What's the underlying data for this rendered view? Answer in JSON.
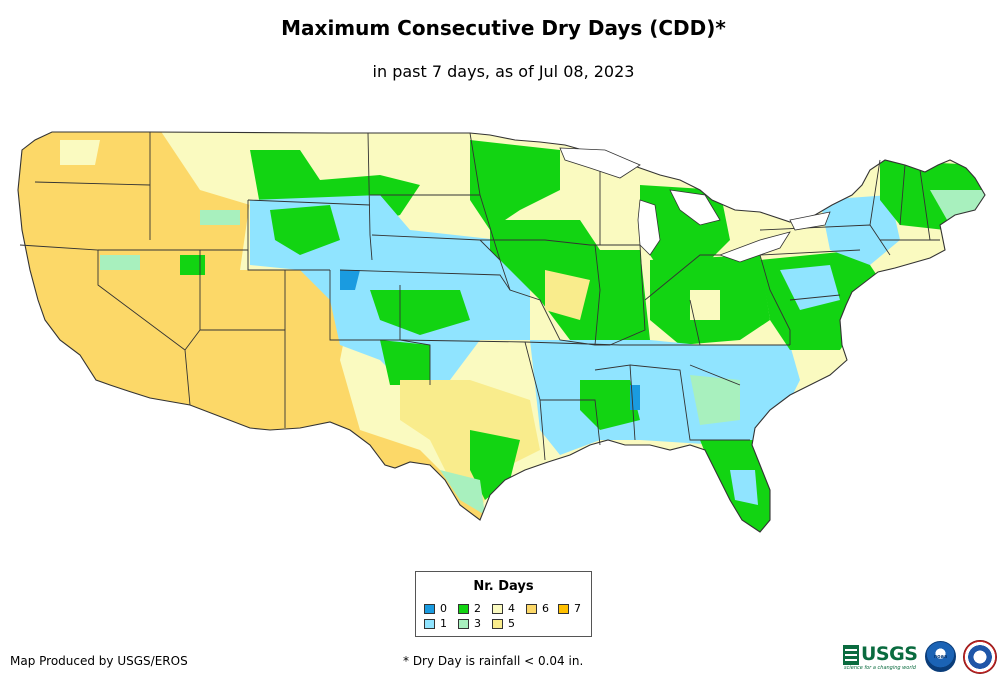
{
  "map": {
    "title": "Maximum Consecutive Dry Days (CDD)*",
    "subtitle": "in past 7 days, as of Jul 08, 2023",
    "colors": {
      "c0": "#1a9be0",
      "c1": "#90e4ff",
      "c2": "#12d412",
      "c3": "#a8f0be",
      "c4": "#fafac0",
      "c5": "#f9ec8c",
      "c6": "#fcd868",
      "c7": "#ffc000",
      "border": "#333333"
    }
  },
  "legend": {
    "title": "Nr. Days",
    "items": [
      {
        "label": "0",
        "color": "#1a9be0"
      },
      {
        "label": "1",
        "color": "#90e4ff"
      },
      {
        "label": "2",
        "color": "#12d412"
      },
      {
        "label": "3",
        "color": "#a8f0be"
      },
      {
        "label": "4",
        "color": "#fafac0"
      },
      {
        "label": "5",
        "color": "#f9ec8c"
      },
      {
        "label": "6",
        "color": "#fcd868"
      },
      {
        "label": "7",
        "color": "#ffc000"
      }
    ]
  },
  "footer": {
    "credit": "Map Produced by USGS/EROS",
    "footnote": "* Dry Day is rainfall < 0.04 in.",
    "usgs_logo": "USGS",
    "usgs_tagline": "science for a changing world",
    "noaa_logo": "noaa"
  }
}
